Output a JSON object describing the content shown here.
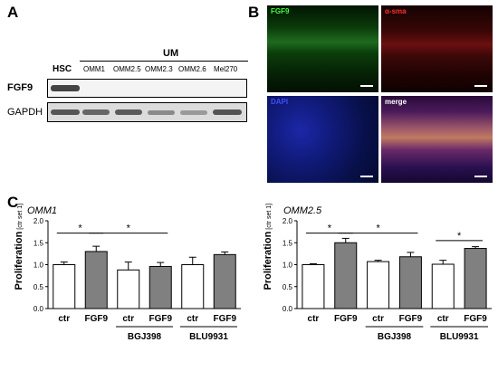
{
  "panel_a": {
    "letter": "A",
    "group_label": "UM",
    "lane_labels": [
      "HSC",
      "OMM1",
      "OMM2.5",
      "OMM2.3",
      "OMM2.6",
      "Mel270"
    ],
    "row_labels": [
      "FGF9",
      "GAPDH"
    ]
  },
  "panel_b": {
    "letter": "B",
    "images": [
      {
        "label": "FGF9",
        "label_color": "#3cff3c",
        "tint": "green"
      },
      {
        "label": "α-sma",
        "label_color": "#ff3030",
        "tint": "red"
      },
      {
        "label": "DAPI",
        "label_color": "#3f4dff",
        "tint": "blue"
      },
      {
        "label": "merge",
        "label_color": "#ffffff",
        "tint": "merge"
      }
    ]
  },
  "panel_c": {
    "letter": "C",
    "colors": {
      "white_bar": "#ffffff",
      "grey_bar": "#808080"
    }
  },
  "chart_data": [
    {
      "type": "bar",
      "title": "OMM1",
      "ylabel": "Proliferation",
      "ylabel_unit": "[ctr set 1]",
      "ylim": [
        0.0,
        2.0
      ],
      "yticks": [
        "0.0",
        "0.5",
        "1.0",
        "1.5",
        "2.0"
      ],
      "categories": [
        "ctr",
        "FGF9",
        "ctr",
        "FGF9",
        "ctr",
        "FGF9"
      ],
      "values": [
        1.0,
        1.3,
        0.88,
        0.96,
        1.0,
        1.23
      ],
      "errors": [
        0.06,
        0.12,
        0.18,
        0.09,
        0.17,
        0.06
      ],
      "fills": [
        "white",
        "grey",
        "white",
        "grey",
        "white",
        "grey"
      ],
      "groups": [
        {
          "label": "BGJ398",
          "from": 2,
          "to": 3
        },
        {
          "label": "BLU9931",
          "from": 4,
          "to": 5
        }
      ],
      "significance": [
        {
          "from": 0,
          "to": 1,
          "y": 1.72,
          "mark": "*"
        },
        {
          "from": 1,
          "to": 3,
          "y": 1.72,
          "mark": "*"
        }
      ]
    },
    {
      "type": "bar",
      "title": "OMM2.5",
      "ylabel": "Proliferation",
      "ylabel_unit": "[ctr set 1]",
      "ylim": [
        0.0,
        2.0
      ],
      "yticks": [
        "0.0",
        "0.5",
        "1.0",
        "1.5",
        "2.0"
      ],
      "categories": [
        "ctr",
        "FGF9",
        "ctr",
        "FGF9",
        "ctr",
        "FGF9"
      ],
      "values": [
        1.0,
        1.5,
        1.07,
        1.18,
        1.01,
        1.37
      ],
      "errors": [
        0.02,
        0.1,
        0.03,
        0.1,
        0.09,
        0.04
      ],
      "fills": [
        "white",
        "grey",
        "white",
        "grey",
        "white",
        "grey"
      ],
      "groups": [
        {
          "label": "BGJ398",
          "from": 2,
          "to": 3
        },
        {
          "label": "BLU9931",
          "from": 4,
          "to": 5
        }
      ],
      "significance": [
        {
          "from": 0,
          "to": 1,
          "y": 1.72,
          "mark": "*"
        },
        {
          "from": 1,
          "to": 3,
          "y": 1.72,
          "mark": "*"
        },
        {
          "from": 4,
          "to": 5,
          "y": 1.55,
          "mark": "*"
        }
      ]
    }
  ]
}
